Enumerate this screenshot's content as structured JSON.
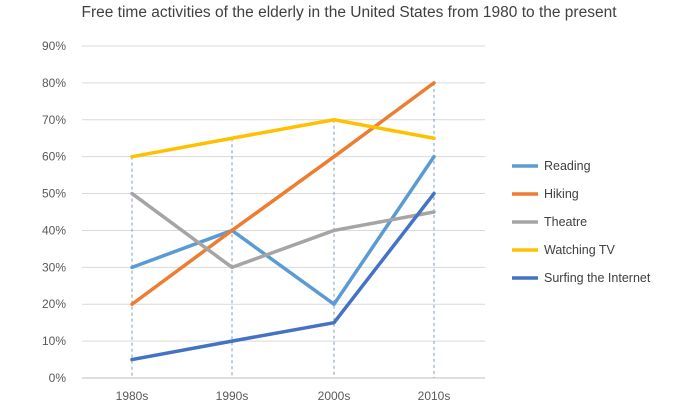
{
  "chart_data": {
    "type": "line",
    "title": "Free time activities of the elderly in the United States from 1980 to the present",
    "xlabel": "",
    "ylabel": "",
    "categories": [
      "1980s",
      "1990s",
      "2000s",
      "2010s"
    ],
    "ylim": [
      0,
      90
    ],
    "yticks": [
      0,
      10,
      20,
      30,
      40,
      50,
      60,
      70,
      80,
      90
    ],
    "ytick_labels": [
      "0%",
      "10%",
      "20%",
      "30%",
      "40%",
      "50%",
      "60%",
      "70%",
      "80%",
      "90%"
    ],
    "grid": "horizontal",
    "drop_lines": true,
    "legend_position": "right",
    "series": [
      {
        "name": "Reading",
        "values": [
          30,
          40,
          20,
          60
        ],
        "color": "#5B9BD5"
      },
      {
        "name": "Hiking",
        "values": [
          20,
          40,
          60,
          80
        ],
        "color": "#ED7D31"
      },
      {
        "name": "Theatre",
        "values": [
          50,
          30,
          40,
          45
        ],
        "color": "#A5A5A5"
      },
      {
        "name": "Watching TV",
        "values": [
          60,
          65,
          70,
          65
        ],
        "color": "#FFC000"
      },
      {
        "name": "Surfing the Internet",
        "values": [
          5,
          10,
          15,
          50
        ],
        "color": "#4472C4"
      }
    ]
  }
}
